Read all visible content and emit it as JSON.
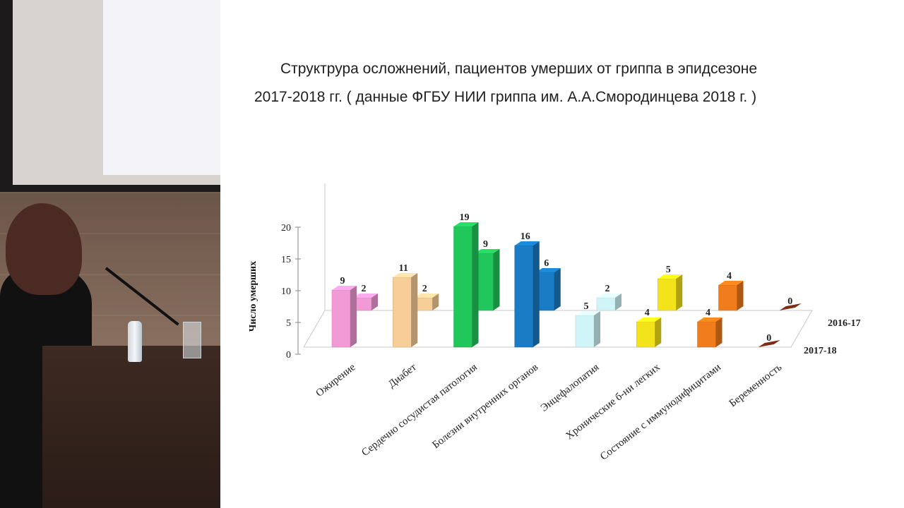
{
  "slide": {
    "title_line_1": "Структрура осложнений, пациентов умерших от гриппа в эпидсезоне",
    "title_line_2": "2017-2018 гг. (  данные ФГБУ НИИ гриппа им. А.А.Смородинцева  2018 г. )"
  },
  "chart_data": {
    "type": "bar",
    "style": "3d-clustered",
    "ylabel": "Число умерших",
    "ylim": [
      0,
      20
    ],
    "yticks": [
      0,
      5,
      10,
      15,
      20
    ],
    "categories": [
      "Ожирение",
      "Диабет",
      "Сердечно сосудистая патология",
      "Болезни внутренних органов",
      "Энцефалопатия",
      "Хронические б-ни легких",
      "Состояние с иммунодифицитами",
      "Беременность"
    ],
    "series": [
      {
        "name": "2017-18",
        "values": [
          9,
          11,
          19,
          16,
          5,
          4,
          4,
          0
        ]
      },
      {
        "name": "2016-17",
        "values": [
          2,
          2,
          9,
          6,
          2,
          5,
          4,
          0
        ]
      }
    ],
    "colors": [
      "#f29ad6",
      "#f7cd98",
      "#22c75c",
      "#1a7cc4",
      "#cff5f8",
      "#f3e31a",
      "#f07c1c",
      "#7a2e14"
    ],
    "grid": false,
    "legend": "depth-axis-labels"
  }
}
